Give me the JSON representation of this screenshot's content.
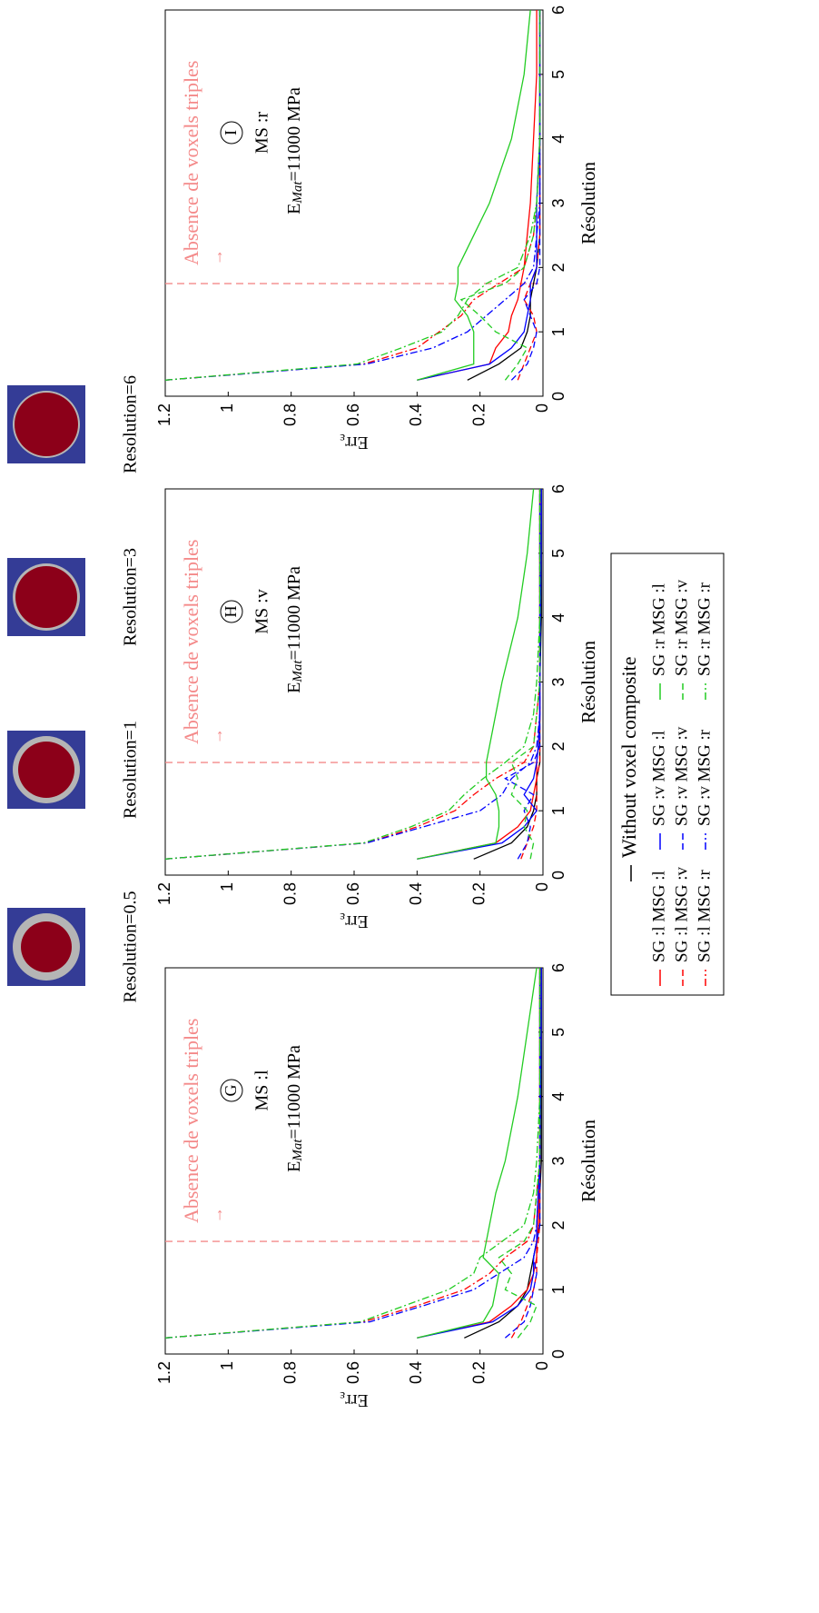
{
  "chart_data": {
    "type": "line",
    "x_label": "Résolution",
    "y_label": [
      "Err",
      "ε"
    ],
    "xlim": [
      0,
      6
    ],
    "ylim": [
      0,
      1.2
    ],
    "xticks": [
      0,
      1,
      2,
      3,
      4,
      5,
      6
    ],
    "yticks": [
      0,
      0.2,
      0.4,
      0.6,
      0.8,
      1,
      1.2
    ],
    "x": [
      0.25,
      0.5,
      0.75,
      1,
      1.25,
      1.5,
      1.75,
      2,
      2.5,
      3,
      4,
      5,
      6
    ],
    "threshold": 1.75,
    "threshold_color": "#f48a8a",
    "annotation": "Absence de voxels triples",
    "arrow": "→",
    "modulus": [
      "E",
      "Mat",
      "=11000 MPa"
    ],
    "panels": [
      {
        "label": "G",
        "ms": "MS :l"
      },
      {
        "label": "H",
        "ms": "MS :v"
      },
      {
        "label": "I",
        "ms": "MS :r"
      }
    ],
    "series": [
      {
        "name": "Without voxel composite",
        "color": "#000000",
        "dash": "solid",
        "values": [
          [
            0.25,
            0.14,
            0.08,
            0.05,
            0.04,
            0.03,
            0.02,
            0.01,
            0.01,
            0.005,
            0.005,
            0.005,
            0.005
          ],
          [
            0.22,
            0.1,
            0.05,
            0.03,
            0.02,
            0.02,
            0.01,
            0.01,
            0.01,
            0.01,
            0.005,
            0.005,
            0.005
          ],
          [
            0.24,
            0.14,
            0.07,
            0.05,
            0.04,
            0.04,
            0.03,
            0.02,
            0.01,
            0.01,
            0.01,
            0.01,
            0.01
          ]
        ]
      },
      {
        "name": "SG :l MSG :l",
        "color": "#ff0000",
        "dash": "solid",
        "values": [
          [
            0.4,
            0.17,
            0.1,
            0.05,
            0.03,
            0.02,
            0.02,
            0.015,
            0.012,
            0.01,
            0.01,
            0.01,
            0.01
          ],
          [
            0.4,
            0.15,
            0.08,
            0.04,
            0.03,
            0.02,
            0.02,
            0.015,
            0.01,
            0.01,
            0.01,
            0.01,
            0.01
          ],
          [
            0.4,
            0.17,
            0.15,
            0.11,
            0.1,
            0.08,
            0.07,
            0.06,
            0.05,
            0.04,
            0.03,
            0.02,
            0.02
          ]
        ]
      },
      {
        "name": "SG :l MSG :v",
        "color": "#ff0000",
        "dash": "dashed",
        "values": [
          [
            0.1,
            0.07,
            0.05,
            0.03,
            0.02,
            0.02,
            0.015,
            0.01,
            0.01,
            0.01,
            0.01,
            0.01,
            0.01
          ],
          [
            0.07,
            0.05,
            0.03,
            0.02,
            0.02,
            0.02,
            0.01,
            0.01,
            0.01,
            0.01,
            0.01,
            0.01,
            0.01
          ],
          [
            0.08,
            0.06,
            0.04,
            0.02,
            0.03,
            0.06,
            0.04,
            0.02,
            0.01,
            0.01,
            0.01,
            0.01,
            0.01
          ]
        ]
      },
      {
        "name": "SG :l MSG :r",
        "color": "#ff0000",
        "dash": "dashdot",
        "values": [
          [
            1.2,
            0.57,
            0.4,
            0.25,
            0.17,
            0.12,
            0.05,
            0.03,
            0.02,
            0.01,
            0.01,
            0.01,
            0.01
          ],
          [
            1.2,
            0.56,
            0.4,
            0.28,
            0.22,
            0.15,
            0.06,
            0.03,
            0.02,
            0.01,
            0.01,
            0.01,
            0.01
          ],
          [
            1.2,
            0.57,
            0.4,
            0.33,
            0.26,
            0.22,
            0.14,
            0.06,
            0.03,
            0.02,
            0.01,
            0.01,
            0.01
          ]
        ]
      },
      {
        "name": "SG :v MSG :l",
        "color": "#0000ff",
        "dash": "solid",
        "values": [
          [
            0.4,
            0.16,
            0.08,
            0.04,
            0.03,
            0.03,
            0.02,
            0.02,
            0.015,
            0.01,
            0.008,
            0.006,
            0.005
          ],
          [
            0.4,
            0.13,
            0.06,
            0.02,
            0.06,
            0.03,
            0.02,
            0.015,
            0.01,
            0.01,
            0.008,
            0.006,
            0.005
          ],
          [
            0.4,
            0.17,
            0.1,
            0.06,
            0.05,
            0.04,
            0.04,
            0.02,
            0.02,
            0.02,
            0.01,
            0.01,
            0.01
          ]
        ]
      },
      {
        "name": "SG :v MSG :v",
        "color": "#0000ff",
        "dash": "dashed",
        "values": [
          [
            0.12,
            0.06,
            0.04,
            0.03,
            0.02,
            0.03,
            0.02,
            0.01,
            0.01,
            0.01,
            0.01,
            0.01,
            0.01
          ],
          [
            0.08,
            0.05,
            0.04,
            0.06,
            0.03,
            0.12,
            0.03,
            0.01,
            0.01,
            0.01,
            0.01,
            0.01,
            0.01
          ],
          [
            0.1,
            0.05,
            0.03,
            0.02,
            0.04,
            0.06,
            0.02,
            0.01,
            0.01,
            0.01,
            0.01,
            0.01,
            0.01
          ]
        ]
      },
      {
        "name": "SG :v MSG :r",
        "color": "#0000ff",
        "dash": "dashdot",
        "values": [
          [
            1.2,
            0.55,
            0.38,
            0.22,
            0.14,
            0.06,
            0.03,
            0.02,
            0.015,
            0.01,
            0.01,
            0.01,
            0.01
          ],
          [
            1.2,
            0.56,
            0.38,
            0.2,
            0.13,
            0.1,
            0.04,
            0.02,
            0.01,
            0.01,
            0.01,
            0.01,
            0.01
          ],
          [
            1.2,
            0.56,
            0.35,
            0.24,
            0.18,
            0.12,
            0.06,
            0.03,
            0.02,
            0.01,
            0.01,
            0.01,
            0.01
          ]
        ]
      },
      {
        "name": "SG :r MSG :l",
        "color": "#22cc22",
        "dash": "solid",
        "values": [
          [
            0.4,
            0.19,
            0.16,
            0.15,
            0.14,
            0.19,
            0.18,
            0.17,
            0.15,
            0.12,
            0.08,
            0.05,
            0.02
          ],
          [
            0.4,
            0.15,
            0.14,
            0.14,
            0.15,
            0.18,
            0.18,
            0.17,
            0.15,
            0.13,
            0.08,
            0.05,
            0.03
          ],
          [
            0.4,
            0.22,
            0.22,
            0.22,
            0.24,
            0.28,
            0.27,
            0.27,
            0.22,
            0.17,
            0.1,
            0.06,
            0.04
          ]
        ]
      },
      {
        "name": "SG :r MSG :v",
        "color": "#22cc22",
        "dash": "dashed",
        "values": [
          [
            0.08,
            0.04,
            0.02,
            0.12,
            0.1,
            0.14,
            0.06,
            0.03,
            0.02,
            0.01,
            0.01,
            0.01,
            0.01
          ],
          [
            0.04,
            0.03,
            0.06,
            0.05,
            0.1,
            0.08,
            0.1,
            0.03,
            0.02,
            0.01,
            0.01,
            0.01,
            0.01
          ],
          [
            0.12,
            0.08,
            0.05,
            0.15,
            0.2,
            0.26,
            0.12,
            0.06,
            0.03,
            0.02,
            0.01,
            0.01,
            0.01
          ]
        ]
      },
      {
        "name": "SG :r MSG :r",
        "color": "#22cc22",
        "dash": "dashdot",
        "values": [
          [
            1.2,
            0.58,
            0.44,
            0.3,
            0.22,
            0.2,
            0.13,
            0.06,
            0.03,
            0.02,
            0.01,
            0.01,
            0.01
          ],
          [
            1.2,
            0.57,
            0.42,
            0.3,
            0.25,
            0.19,
            0.12,
            0.06,
            0.03,
            0.02,
            0.01,
            0.01,
            0.01
          ],
          [
            1.2,
            0.59,
            0.45,
            0.32,
            0.27,
            0.24,
            0.18,
            0.08,
            0.04,
            0.02,
            0.01,
            0.01,
            0.01
          ]
        ]
      }
    ]
  },
  "images": [
    {
      "label": "Resolution=0.5"
    },
    {
      "label": "Resolution=1"
    },
    {
      "label": "Resolution=3"
    },
    {
      "label": "Resolution=6"
    }
  ]
}
